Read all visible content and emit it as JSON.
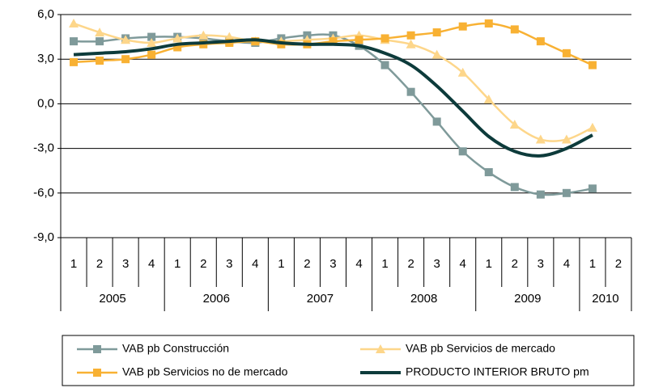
{
  "chart_data": {
    "type": "line",
    "categories": [
      "1",
      "2",
      "3",
      "4",
      "1",
      "2",
      "3",
      "4",
      "1",
      "2",
      "3",
      "4",
      "1",
      "2",
      "3",
      "4",
      "1",
      "2",
      "3",
      "4",
      "1",
      "2"
    ],
    "category_groups": [
      "2005",
      "2006",
      "2007",
      "2008",
      "2009",
      "2010"
    ],
    "ylim": [
      -9,
      6
    ],
    "yticks": [
      {
        "value": -9,
        "label": "-9,0"
      },
      {
        "value": -6,
        "label": "-6,0"
      },
      {
        "value": -3,
        "label": "-3,0"
      },
      {
        "value": 0,
        "label": "0,0"
      },
      {
        "value": 3,
        "label": "3,0"
      },
      {
        "value": 6,
        "label": "6,0"
      }
    ],
    "grid": true,
    "legend": "bottom",
    "series": [
      {
        "name": "VAB pb Construcción",
        "color": "#7f9a9a",
        "marker": "square",
        "values": [
          4.2,
          4.2,
          4.4,
          4.5,
          4.5,
          4.4,
          4.2,
          4.1,
          4.4,
          4.6,
          4.6,
          3.9,
          2.6,
          0.8,
          -1.2,
          -3.2,
          -4.6,
          -5.6,
          -6.1,
          -6.0,
          -5.7,
          null
        ]
      },
      {
        "name": "VAB pb Servicios de mercado",
        "color": "#fdd68a",
        "marker": "triangle",
        "values": [
          5.4,
          4.8,
          4.3,
          4.1,
          4.4,
          4.6,
          4.5,
          4.2,
          4.2,
          4.3,
          4.4,
          4.6,
          4.3,
          4.0,
          3.3,
          2.1,
          0.3,
          -1.4,
          -2.4,
          -2.4,
          -1.6,
          null
        ]
      },
      {
        "name": "VAB pb Servicios no de mercado",
        "color": "#f8b133",
        "marker": "square",
        "values": [
          2.8,
          2.9,
          3.0,
          3.3,
          3.8,
          4.0,
          4.1,
          4.2,
          4.0,
          4.0,
          4.2,
          4.3,
          4.4,
          4.6,
          4.8,
          5.2,
          5.4,
          5.0,
          4.2,
          3.4,
          2.6,
          null
        ]
      },
      {
        "name": "PRODUCTO INTERIOR BRUTO pm",
        "color": "#0d3b3b",
        "marker": "none",
        "values": [
          3.3,
          3.4,
          3.5,
          3.7,
          4.0,
          4.1,
          4.2,
          4.3,
          4.1,
          4.0,
          4.0,
          3.9,
          3.4,
          2.6,
          1.2,
          -0.5,
          -2.2,
          -3.2,
          -3.5,
          -3.0,
          -2.1,
          null
        ]
      }
    ]
  }
}
